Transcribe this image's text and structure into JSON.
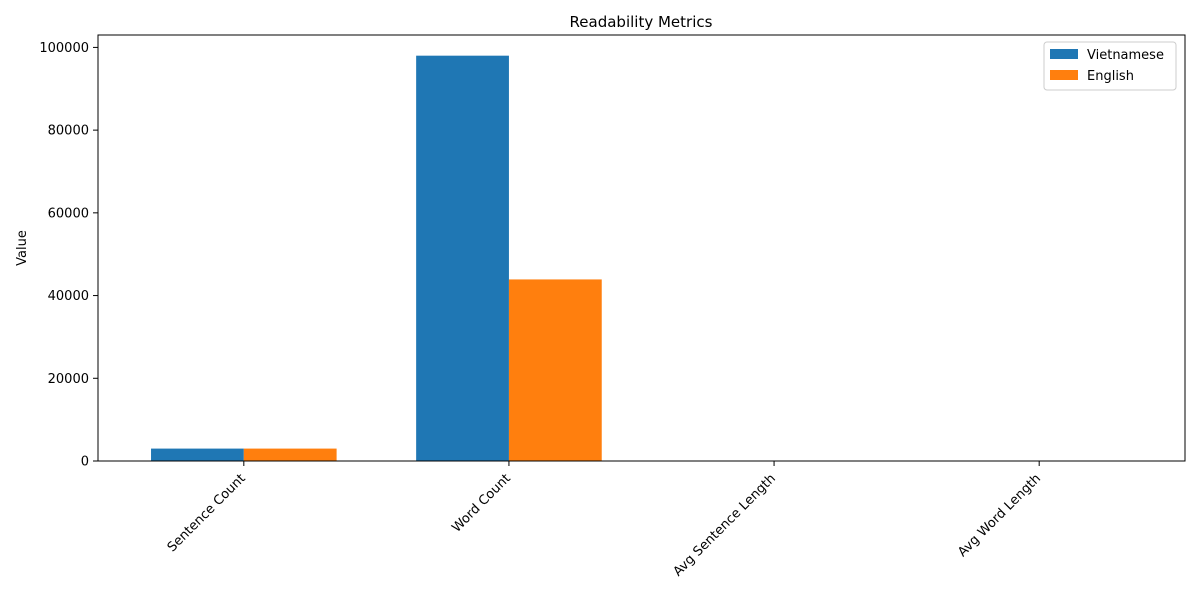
{
  "chart_data": {
    "type": "bar",
    "title": "Readability Metrics",
    "xlabel": "",
    "ylabel": "Value",
    "categories": [
      "Sentence Count",
      "Word Count",
      "Avg Sentence Length",
      "Avg Word Length"
    ],
    "series": [
      {
        "name": "Vietnamese",
        "color": "#1f77b4",
        "values": [
          3000,
          98000,
          33,
          4
        ]
      },
      {
        "name": "English",
        "color": "#ff7f0e",
        "values": [
          3000,
          43900,
          15,
          4.5
        ]
      }
    ],
    "ylim": [
      0,
      103000
    ],
    "yticks": [
      0,
      20000,
      40000,
      60000,
      80000,
      100000
    ],
    "grid": false,
    "legend_position": "top-right"
  }
}
